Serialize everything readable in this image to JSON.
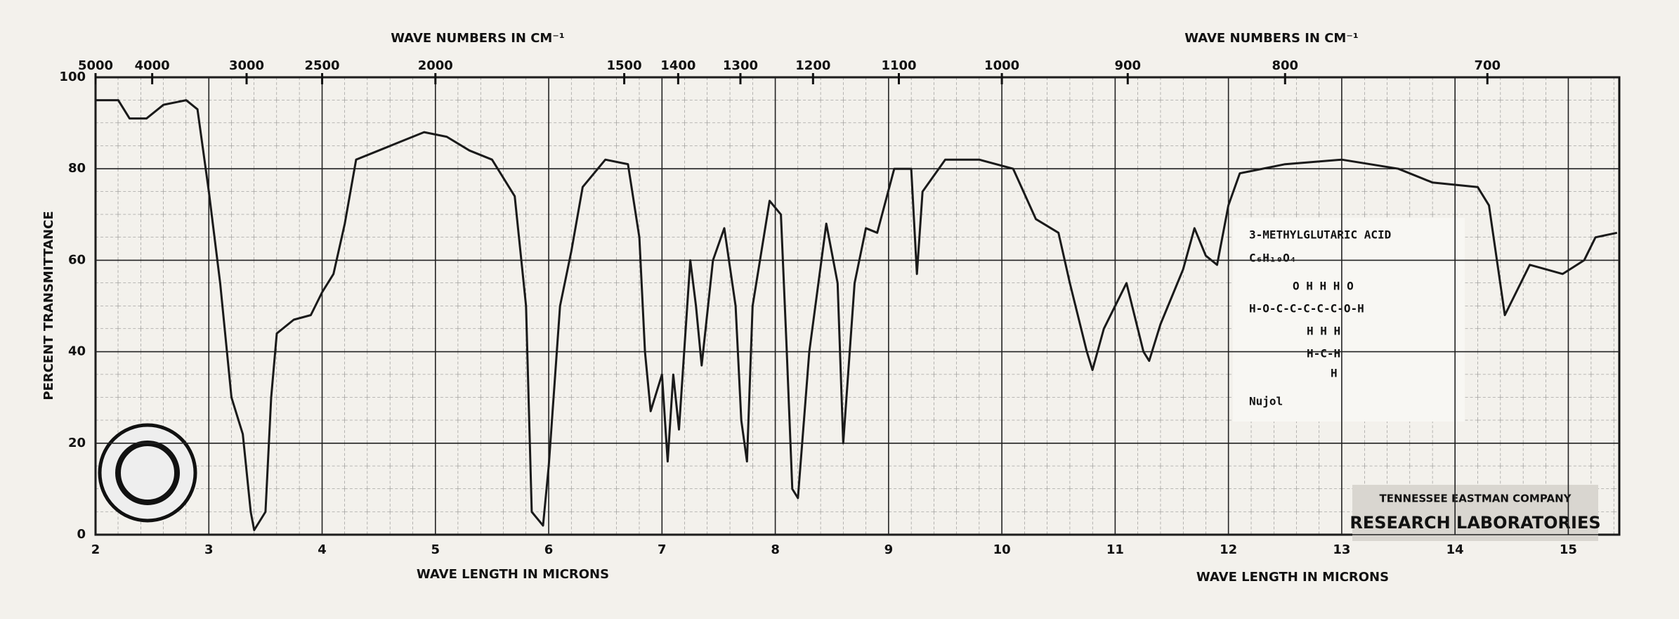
{
  "chart_data": {
    "type": "line",
    "x2label": "WAVE NUMBERS IN CM⁻¹",
    "xlabel": "WAVE LENGTH IN MICRONS",
    "ylabel": "PERCENT TRANSMITTANCE",
    "xlim": [
      2,
      15.45
    ],
    "ylim": [
      0,
      100
    ],
    "xticks": [
      2,
      3,
      4,
      5,
      6,
      7,
      8,
      9,
      10,
      11,
      12,
      13,
      14,
      15
    ],
    "yticks": [
      0,
      20,
      40,
      60,
      80,
      100
    ],
    "x2ticks": [
      5000,
      4000,
      3000,
      2500,
      2000,
      1500,
      1400,
      1300,
      1200,
      1100,
      1000,
      900,
      800,
      700
    ],
    "grid": true,
    "x": [
      2.0,
      2.2,
      2.3,
      2.45,
      2.6,
      2.8,
      2.9,
      3.0,
      3.1,
      3.2,
      3.3,
      3.37,
      3.4,
      3.5,
      3.55,
      3.6,
      3.75,
      3.9,
      4.0,
      4.1,
      4.2,
      4.3,
      4.5,
      4.7,
      4.9,
      5.1,
      5.3,
      5.5,
      5.7,
      5.8,
      5.85,
      5.95,
      6.0,
      6.1,
      6.2,
      6.3,
      6.5,
      6.7,
      6.8,
      6.85,
      6.9,
      7.0,
      7.05,
      7.1,
      7.15,
      7.25,
      7.3,
      7.35,
      7.45,
      7.55,
      7.65,
      7.7,
      7.75,
      7.8,
      7.95,
      8.05,
      8.1,
      8.15,
      8.2,
      8.3,
      8.45,
      8.55,
      8.6,
      8.7,
      8.8,
      8.9,
      9.05,
      9.1,
      9.2,
      9.25,
      9.3,
      9.5,
      9.8,
      10.1,
      10.3,
      10.5,
      10.6,
      10.75,
      10.8,
      10.9,
      11.1,
      11.25,
      11.3,
      11.4,
      11.5,
      11.6,
      11.7,
      11.8,
      11.9,
      12.0,
      12.1,
      12.5,
      13.0,
      13.5,
      13.8,
      14.2,
      14.3,
      14.44,
      14.66,
      14.95,
      15.14,
      15.24,
      15.43
    ],
    "series": [
      {
        "color": "#1a1a1a",
        "values": [
          95,
          95,
          91,
          91,
          94,
          95,
          93,
          75,
          55,
          30,
          22,
          5,
          1,
          5,
          30,
          44,
          47,
          48,
          53,
          57,
          68,
          82,
          84,
          86,
          88,
          87,
          84,
          82,
          74,
          50,
          5,
          2,
          15,
          50,
          62,
          76,
          82,
          81,
          65,
          40,
          27,
          35,
          16,
          35,
          23,
          60,
          50,
          37,
          60,
          67,
          50,
          25,
          16,
          50,
          73,
          70,
          41,
          10,
          8,
          40,
          68,
          55,
          20,
          55,
          67,
          66,
          80,
          80,
          80,
          57,
          75,
          82,
          82,
          80,
          69,
          66,
          55,
          40,
          36,
          45,
          55,
          40,
          38,
          46,
          52,
          58,
          67,
          61,
          59,
          72,
          79,
          81,
          82,
          80,
          77,
          76,
          72,
          48,
          59,
          57,
          60,
          65,
          66
        ]
      }
    ],
    "compound": "3-METHYLGLUTARIC ACID",
    "formula": "C₆H₁₀O₄",
    "structure": [
      "O    H    H    H    O",
      "H-O-C-C-C-C-C-O-H",
      "H    H    H",
      "H-C-H",
      "H"
    ],
    "medium": "Nujol",
    "company": "TENNESSEE EASTMAN COMPANY",
    "lab": "RESEARCH LABORATORIES"
  }
}
